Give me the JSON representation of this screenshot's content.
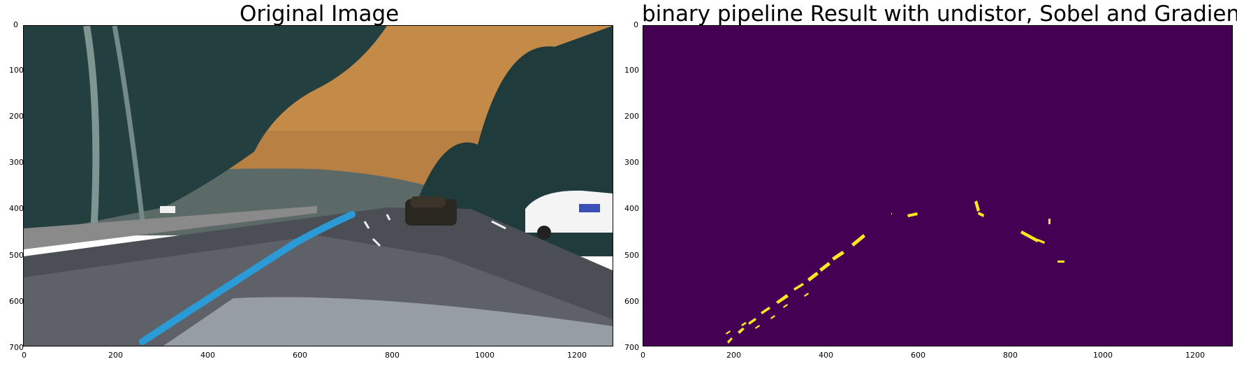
{
  "left_panel": {
    "title": "Original Image",
    "x_ticks": [
      "0",
      "200",
      "400",
      "600",
      "800",
      "1000",
      "1200"
    ],
    "y_ticks": [
      "0",
      "100",
      "200",
      "300",
      "400",
      "500",
      "600",
      "700"
    ]
  },
  "right_panel": {
    "title": "binary pipeline Result with undistor, Sobel and Gradient",
    "x_ticks": [
      "0",
      "200",
      "400",
      "600",
      "800",
      "1000",
      "1200"
    ],
    "y_ticks": [
      "0",
      "100",
      "200",
      "300",
      "400",
      "500",
      "600",
      "700"
    ],
    "background_color": "#440154",
    "pixel_color": "#fde725"
  },
  "colors": {
    "sky": "#c48a48",
    "trees": "#1f3b3b",
    "road": "#4b4f55",
    "lane_blue": "#2a9bd6",
    "car_white": "#f4f4f4"
  }
}
